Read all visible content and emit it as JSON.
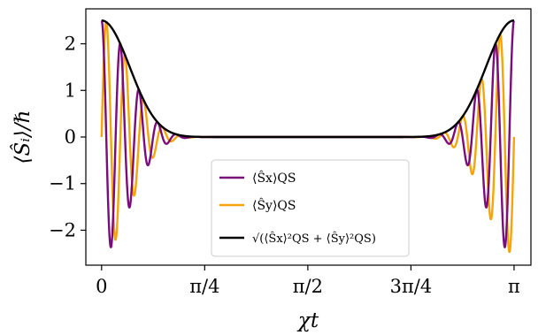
{
  "chart_data": {
    "type": "line",
    "xlabel": "χt",
    "ylabel": "⟨Ŝᵢ⟩/ℏ",
    "xlim": [
      -0.12,
      3.27
    ],
    "ylim": [
      -2.75,
      2.75
    ],
    "x_ticks": [
      {
        "value": 0,
        "label": "0"
      },
      {
        "value": 0.7854,
        "label": "π/4"
      },
      {
        "value": 1.5708,
        "label": "π/2"
      },
      {
        "value": 2.3562,
        "label": "3π/4"
      },
      {
        "value": 3.1416,
        "label": "π"
      }
    ],
    "y_ticks": [
      {
        "value": 2,
        "label": "2"
      },
      {
        "value": 1,
        "label": "1"
      },
      {
        "value": 0,
        "label": "0"
      },
      {
        "value": -1,
        "label": "−1"
      },
      {
        "value": -2,
        "label": "−2"
      }
    ],
    "grid": false,
    "legend_position": "lower-center",
    "series": [
      {
        "name": "⟨Ŝx⟩QS",
        "color": "#7b0c7b",
        "amplitude": 2.5,
        "oscillations": 22,
        "phase": "cos"
      },
      {
        "name": "⟨Ŝy⟩QS",
        "color": "#f5a50a",
        "amplitude": 2.5,
        "oscillations": 22,
        "phase": "sin"
      },
      {
        "name": "√(⟨Ŝx⟩²QS + ⟨Ŝy⟩²QS)",
        "color": "#000000",
        "amplitude": 2.5,
        "envelope": true
      }
    ],
    "legend": [
      {
        "label": "⟨Ŝx⟩QS",
        "color": "#7b0c7b"
      },
      {
        "label": "⟨Ŝy⟩QS",
        "color": "#f5a50a"
      },
      {
        "label": "√(⟨Ŝx⟩²QS + ⟨Ŝy⟩²QS)",
        "color": "#000000"
      }
    ]
  }
}
